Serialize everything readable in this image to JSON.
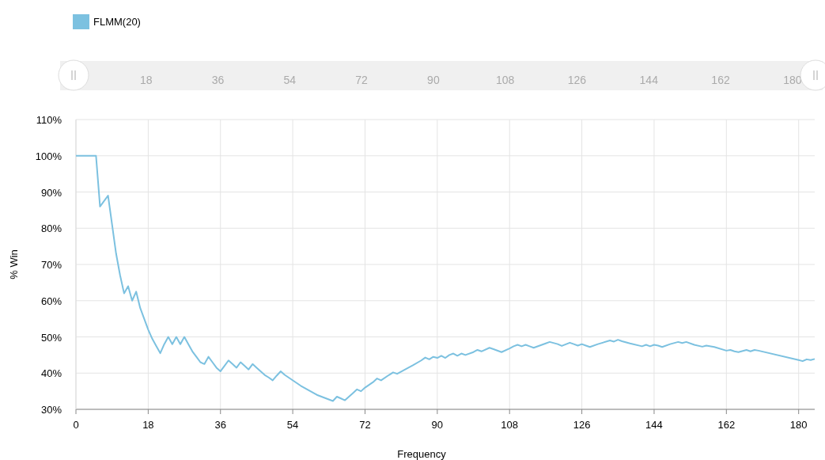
{
  "chart_data": {
    "type": "line",
    "xlabel": "Frequency",
    "ylabel": "% Win",
    "xlim": [
      0,
      184
    ],
    "xticks": [
      0,
      18,
      36,
      54,
      72,
      90,
      108,
      126,
      144,
      162,
      180
    ],
    "x2lim": [
      0,
      184
    ],
    "x2ticks": [
      18,
      36,
      54,
      72,
      90,
      108,
      126,
      144,
      162,
      180
    ],
    "ylim": [
      30,
      110
    ],
    "yticks": [
      {
        "value": 30,
        "label": "30%"
      },
      {
        "value": 40,
        "label": "40%"
      },
      {
        "value": 50,
        "label": "50%"
      },
      {
        "value": 60,
        "label": "60%"
      },
      {
        "value": 70,
        "label": "70%"
      },
      {
        "value": 80,
        "label": "80%"
      },
      {
        "value": 90,
        "label": "90%"
      },
      {
        "value": 100,
        "label": "100%"
      },
      {
        "value": 110,
        "label": "110%"
      }
    ],
    "grid": true,
    "legend": "top left",
    "marker": "none",
    "line_style": "solid",
    "series": [
      {
        "name": "FLMM(20)",
        "color": "#7cc1e0",
        "x": [
          0,
          5,
          6,
          8,
          9,
          10,
          11,
          12,
          13,
          14,
          15,
          16,
          17,
          18,
          19,
          20,
          21,
          22,
          23,
          24,
          25,
          26,
          27,
          28,
          29,
          30,
          31,
          32,
          33,
          34,
          35,
          36,
          37,
          38,
          39,
          40,
          41,
          42,
          43,
          44,
          45,
          46,
          47,
          48,
          49,
          50,
          51,
          52,
          56,
          60,
          64,
          65,
          66,
          67,
          68,
          69,
          70,
          71,
          72,
          74,
          75,
          76,
          78,
          79,
          80,
          82,
          84,
          86,
          87,
          88,
          89,
          90,
          91,
          92,
          93,
          94,
          95,
          96,
          97,
          99,
          100,
          101,
          103,
          104,
          106,
          108,
          109,
          110,
          111,
          112,
          113,
          114,
          117,
          118,
          120,
          121,
          123,
          124,
          125,
          126,
          127,
          128,
          130,
          133,
          134,
          135,
          136,
          138,
          141,
          142,
          143,
          144,
          145,
          146,
          148,
          150,
          151,
          152,
          154,
          156,
          157,
          159,
          162,
          163,
          164,
          165,
          167,
          168,
          169,
          170,
          180,
          181,
          182,
          183,
          184
        ],
        "values": [
          100,
          100,
          86,
          89,
          81,
          73,
          67,
          62,
          64,
          60,
          62.5,
          58,
          55,
          52,
          49.5,
          47.5,
          45.5,
          48,
          50,
          48,
          50,
          48,
          50,
          48,
          46,
          44.5,
          43,
          42.5,
          44.5,
          43,
          41.5,
          40.5,
          42,
          43.5,
          42.5,
          41.5,
          43,
          42,
          41,
          42.5,
          41.5,
          40.5,
          39.5,
          38.8,
          38,
          39.3,
          40.5,
          39.5,
          36.5,
          34,
          32.3,
          33.5,
          33,
          32.5,
          33.5,
          34.5,
          35.5,
          35,
          36,
          37.5,
          38.5,
          38,
          39.5,
          40.2,
          39.8,
          41,
          42.2,
          43.5,
          44.3,
          43.8,
          44.5,
          44.2,
          44.8,
          44.2,
          45,
          45.4,
          44.8,
          45.4,
          45,
          45.8,
          46.4,
          46,
          47,
          46.6,
          45.8,
          46.8,
          47.4,
          47.8,
          47.4,
          47.8,
          47.4,
          47,
          48.2,
          48.6,
          48,
          47.5,
          48.4,
          48,
          47.6,
          48,
          47.6,
          47.2,
          48,
          49,
          48.7,
          49.2,
          48.8,
          48.2,
          47.4,
          47.8,
          47.4,
          47.8,
          47.6,
          47.2,
          48,
          48.6,
          48.3,
          48.6,
          47.8,
          47.3,
          47.6,
          47.2,
          46.2,
          46.4,
          46,
          45.8,
          46.4,
          46,
          46.4,
          46.2,
          43.6,
          43.3,
          43.8,
          43.6,
          43.9
        ]
      }
    ]
  }
}
